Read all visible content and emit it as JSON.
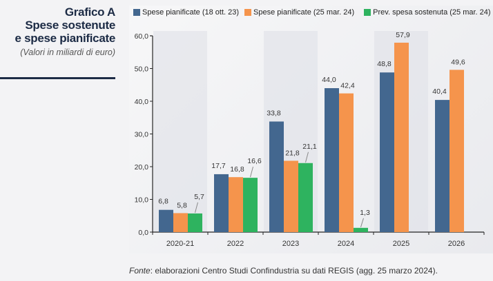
{
  "header": {
    "title_line1": "Grafico A",
    "title_line2": "Spese sostenute",
    "title_line3": "e spese pianificate",
    "subtitle": "(Valori in miliardi di euro)"
  },
  "source": {
    "label": "Fonte",
    "text": ": elaborazioni Centro Studi Confindustria su dati REGIS (agg. 25 marzo 2024)."
  },
  "chart_data": {
    "type": "bar",
    "title": "Spese sostenute e spese pianificate",
    "subtitle": "(Valori in miliardi di euro)",
    "xlabel": "",
    "ylabel": "",
    "ylim": [
      0,
      60
    ],
    "yticks": [
      0,
      10,
      20,
      30,
      40,
      50,
      60
    ],
    "ytick_labels": [
      "0,0",
      "10,0",
      "20,0",
      "30,0",
      "40,0",
      "50,0",
      "60,0"
    ],
    "categories": [
      "2020-21",
      "2022",
      "2023",
      "2024",
      "2025",
      "2026"
    ],
    "legend_position": "top",
    "grid": false,
    "series": [
      {
        "name": "Spese pianificate (18 ott. 23)",
        "color": "#43678f",
        "values": [
          6.8,
          17.7,
          33.8,
          44.0,
          48.8,
          40.4
        ],
        "labels": [
          "6,8",
          "17,7",
          "33,8",
          "44,0",
          "48,8",
          "40,4"
        ]
      },
      {
        "name": "Spese pianificate (25 mar. 24)",
        "color": "#f5944c",
        "values": [
          5.8,
          16.8,
          21.8,
          42.4,
          57.9,
          49.6
        ],
        "labels": [
          "5,8",
          "16,8",
          "21,8",
          "42,4",
          "57,9",
          "49,6"
        ]
      },
      {
        "name": "Prev. spesa sostenuta (25 mar. 24)",
        "color": "#2eb35f",
        "values": [
          5.7,
          16.6,
          21.1,
          1.3,
          null,
          null
        ],
        "labels": [
          "5,7",
          "16,6",
          "21,1",
          "1,3",
          null,
          null
        ]
      }
    ]
  }
}
